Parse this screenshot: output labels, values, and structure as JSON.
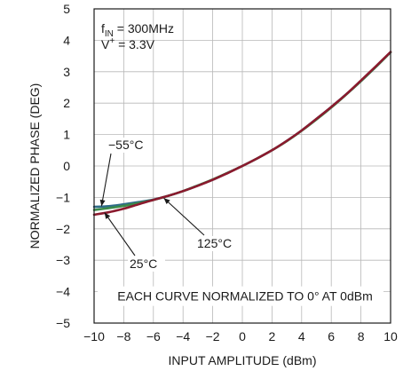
{
  "chart_data": {
    "type": "line",
    "xlabel": "INPUT AMPLITUDE (dBm)",
    "ylabel": "NORMALIZED PHASE (DEG)",
    "xlim": [
      -10,
      10
    ],
    "ylim": [
      -5,
      5
    ],
    "xticks": [
      -10,
      -8,
      -6,
      -4,
      -2,
      0,
      2,
      4,
      6,
      8,
      10
    ],
    "yticks": [
      -5,
      -4,
      -3,
      -2,
      -1,
      0,
      1,
      2,
      3,
      4,
      5
    ],
    "xtick_labels": [
      "−10",
      "−8",
      "−6",
      "−4",
      "−2",
      "0",
      "2",
      "4",
      "6",
      "8",
      "10"
    ],
    "ytick_labels": [
      "−5",
      "−4",
      "−3",
      "−2",
      "−1",
      "0",
      "1",
      "2",
      "3",
      "4",
      "5"
    ],
    "grid": true,
    "conditions": {
      "f_main": "f",
      "f_sub": "IN",
      "f_rest": " = 300MHz",
      "v_main": "V",
      "v_sup": "+",
      "v_rest": " = 3.3V"
    },
    "note": "EACH CURVE NORMALIZED TO 0° AT 0dBm",
    "curve_labels": {
      "minus55": "−55°C",
      "t25": "25°C",
      "t125": "125°C"
    },
    "series": [
      {
        "name": "−55°C",
        "color": "#2e6b88",
        "x": [
          -10,
          -9,
          -8,
          -7,
          -6,
          -5,
          -4,
          -3,
          -2,
          -1,
          0,
          1,
          2,
          3,
          4,
          5,
          6,
          7,
          8,
          9,
          10
        ],
        "y": [
          -1.3,
          -1.28,
          -1.22,
          -1.15,
          -1.07,
          -0.95,
          -0.8,
          -0.62,
          -0.44,
          -0.22,
          0,
          0.24,
          0.5,
          0.8,
          1.13,
          1.5,
          1.88,
          2.28,
          2.7,
          3.15,
          3.62
        ]
      },
      {
        "name": "25°C",
        "color": "#3a8a4a",
        "x": [
          -10,
          -9,
          -8,
          -7,
          -6,
          -5,
          -4,
          -3,
          -2,
          -1,
          0,
          1,
          2,
          3,
          4,
          5,
          6,
          7,
          8,
          9,
          10
        ],
        "y": [
          -1.4,
          -1.34,
          -1.27,
          -1.18,
          -1.08,
          -0.95,
          -0.8,
          -0.62,
          -0.43,
          -0.22,
          0,
          0.24,
          0.5,
          0.79,
          1.12,
          1.48,
          1.86,
          2.27,
          2.7,
          3.15,
          3.62
        ]
      },
      {
        "name": "125°C",
        "color": "#8b1a2e",
        "x": [
          -10,
          -9,
          -8,
          -7,
          -6,
          -5,
          -4,
          -3,
          -2,
          -1,
          0,
          1,
          2,
          3,
          4,
          5,
          6,
          7,
          8,
          9,
          10
        ],
        "y": [
          -1.55,
          -1.47,
          -1.36,
          -1.22,
          -1.08,
          -0.95,
          -0.8,
          -0.63,
          -0.44,
          -0.23,
          0,
          0.24,
          0.5,
          0.8,
          1.13,
          1.5,
          1.88,
          2.28,
          2.72,
          3.17,
          3.63
        ]
      }
    ]
  }
}
